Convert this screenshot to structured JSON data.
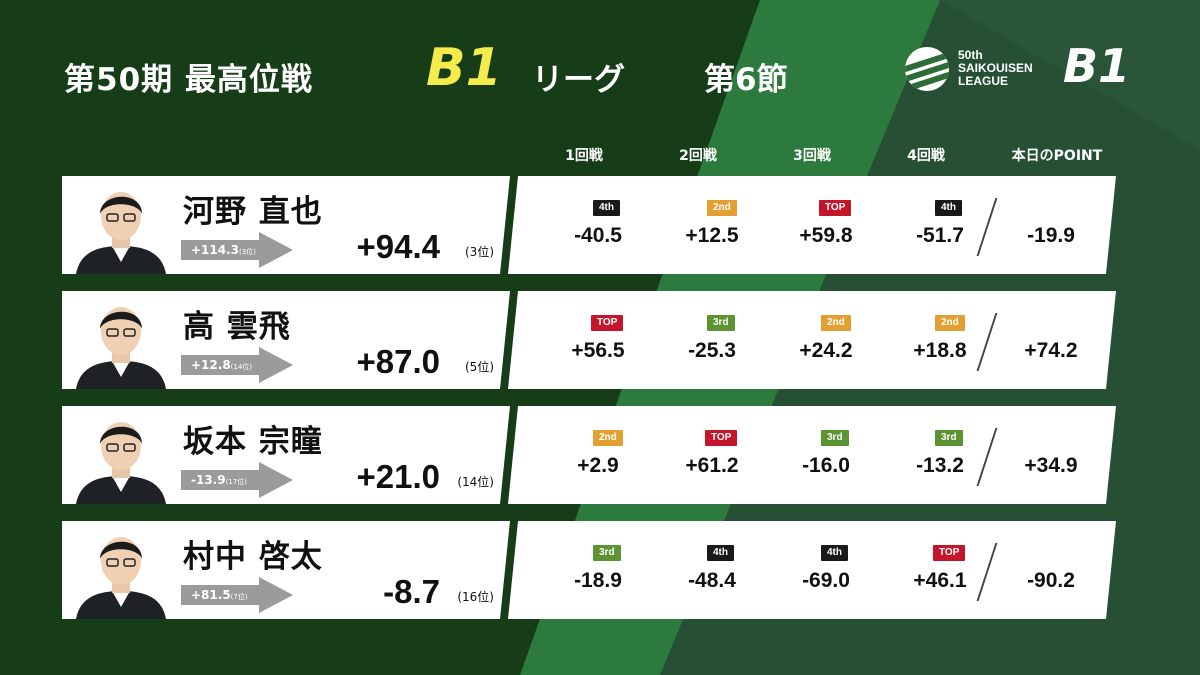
{
  "header": {
    "title_main": "第50期 最高位戦",
    "title_b1": "B1",
    "title_league": "リーグ",
    "title_setsu": "第6節"
  },
  "logo": {
    "text": "50th\nSAIKOUISEN\nLEAGUE",
    "b1": "B1"
  },
  "columns": [
    "1回戦",
    "2回戦",
    "3回戦",
    "4回戦",
    "本日のPOINT"
  ],
  "colors": {
    "TOP": "#c4152a",
    "2nd": "#e3a032",
    "3rd": "#5c9433",
    "4th": "#1a1a1a",
    "accent_yellow": "#f5ec4c",
    "bg_dark": "#163d18"
  },
  "players": [
    {
      "name": "河野 直也",
      "prev_score": "+114.3",
      "prev_rank": "(3位)",
      "total": "+94.4",
      "rank": "(3位)",
      "games": [
        {
          "place": "4th",
          "score": "-40.5"
        },
        {
          "place": "2nd",
          "score": "+12.5"
        },
        {
          "place": "TOP",
          "score": "+59.8"
        },
        {
          "place": "4th",
          "score": "-51.7"
        }
      ],
      "today": "-19.9"
    },
    {
      "name": "高 雲飛",
      "prev_score": "+12.8",
      "prev_rank": "(14位)",
      "total": "+87.0",
      "rank": "(5位)",
      "games": [
        {
          "place": "TOP",
          "score": "+56.5"
        },
        {
          "place": "3rd",
          "score": "-25.3"
        },
        {
          "place": "2nd",
          "score": "+24.2"
        },
        {
          "place": "2nd",
          "score": "+18.8"
        }
      ],
      "today": "+74.2"
    },
    {
      "name": "坂本 宗瞳",
      "prev_score": "-13.9",
      "prev_rank": "(17位)",
      "total": "+21.0",
      "rank": "(14位)",
      "games": [
        {
          "place": "2nd",
          "score": "+2.9"
        },
        {
          "place": "TOP",
          "score": "+61.2"
        },
        {
          "place": "3rd",
          "score": "-16.0"
        },
        {
          "place": "3rd",
          "score": "-13.2"
        }
      ],
      "today": "+34.9"
    },
    {
      "name": "村中 啓太",
      "prev_score": "+81.5",
      "prev_rank": "(7位)",
      "total": "-8.7",
      "rank": "(16位)",
      "games": [
        {
          "place": "3rd",
          "score": "-18.9"
        },
        {
          "place": "4th",
          "score": "-48.4"
        },
        {
          "place": "4th",
          "score": "-69.0"
        },
        {
          "place": "TOP",
          "score": "+46.1"
        }
      ],
      "today": "-90.2"
    }
  ]
}
